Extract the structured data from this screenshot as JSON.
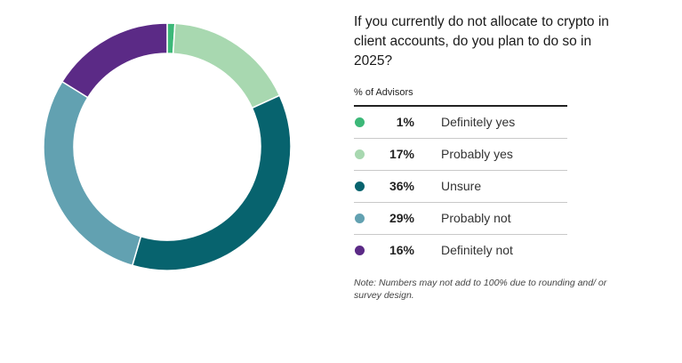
{
  "colors": {
    "definitely_yes": "#3cb878",
    "probably_yes": "#a8d8b0",
    "unsure": "#07636e",
    "probably_not": "#62a1b1",
    "definitely_not": "#5b2a86"
  },
  "chart_data": {
    "type": "pie",
    "variant": "donut",
    "title": "If you currently do not allocate to crypto in client accounts, do you plan to do so in 2025?",
    "subtitle": "% of Advisors",
    "series": [
      {
        "name": "Definitely yes",
        "value": 1,
        "label": "1%",
        "color": "#3cb878"
      },
      {
        "name": "Probably yes",
        "value": 17,
        "label": "17%",
        "color": "#a8d8b0"
      },
      {
        "name": "Unsure",
        "value": 36,
        "label": "36%",
        "color": "#07636e"
      },
      {
        "name": "Probably not",
        "value": 29,
        "label": "29%",
        "color": "#62a1b1"
      },
      {
        "name": "Definitely not",
        "value": 16,
        "label": "16%",
        "color": "#5b2a86"
      }
    ],
    "note": "Note: Numbers may not add to 100% due to rounding and/ or survey design.",
    "legend_position": "right"
  }
}
